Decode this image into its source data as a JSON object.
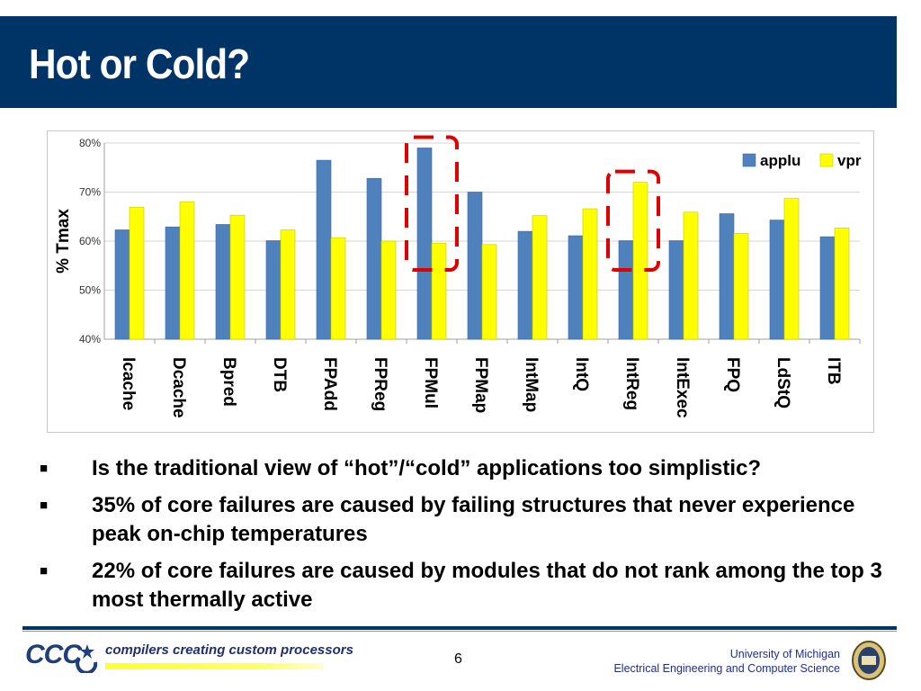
{
  "slide": {
    "title": "Hot or Cold?",
    "page_number": "6"
  },
  "chart_data": {
    "type": "bar",
    "ylabel": "% Tmax",
    "ylim": [
      40,
      80
    ],
    "yticks": [
      "40%",
      "50%",
      "60%",
      "70%",
      "80%"
    ],
    "grid": true,
    "legend_position": "top-right",
    "categories": [
      "Icache",
      "Dcache",
      "Bpred",
      "DTB",
      "FPAdd",
      "FPReg",
      "FPMul",
      "FPMap",
      "IntMap",
      "IntQ",
      "IntReg",
      "IntExec",
      "FPQ",
      "LdStQ",
      "ITB"
    ],
    "series": [
      {
        "name": "applu",
        "color": "#4f81bd",
        "values": [
          62.3,
          62.9,
          63.4,
          60.1,
          76.5,
          72.8,
          79.0,
          70.0,
          62.0,
          61.1,
          60.1,
          60.1,
          65.6,
          64.3,
          60.9
        ]
      },
      {
        "name": "vpr",
        "color": "#ffff00",
        "values": [
          66.9,
          68.0,
          65.3,
          62.3,
          60.7,
          60.0,
          59.6,
          59.3,
          65.2,
          66.6,
          72.0,
          65.9,
          61.6,
          68.7,
          62.7
        ]
      }
    ],
    "highlighted_categories": [
      "FPMul",
      "IntReg"
    ]
  },
  "bullets": [
    "Is the traditional view of “hot”/“cold” applications too simplistic?",
    "35% of core failures are caused by failing structures that never experience peak on-chip temperatures",
    "22% of core failures are caused by modules that do not rank among the top 3 most thermally active"
  ],
  "bullet_marker": "■",
  "footer": {
    "logo_text": "CCC",
    "tagline": "compilers creating custom processors",
    "university_line1": "University of Michigan",
    "university_line2": "Electrical Engineering and Computer Science"
  }
}
